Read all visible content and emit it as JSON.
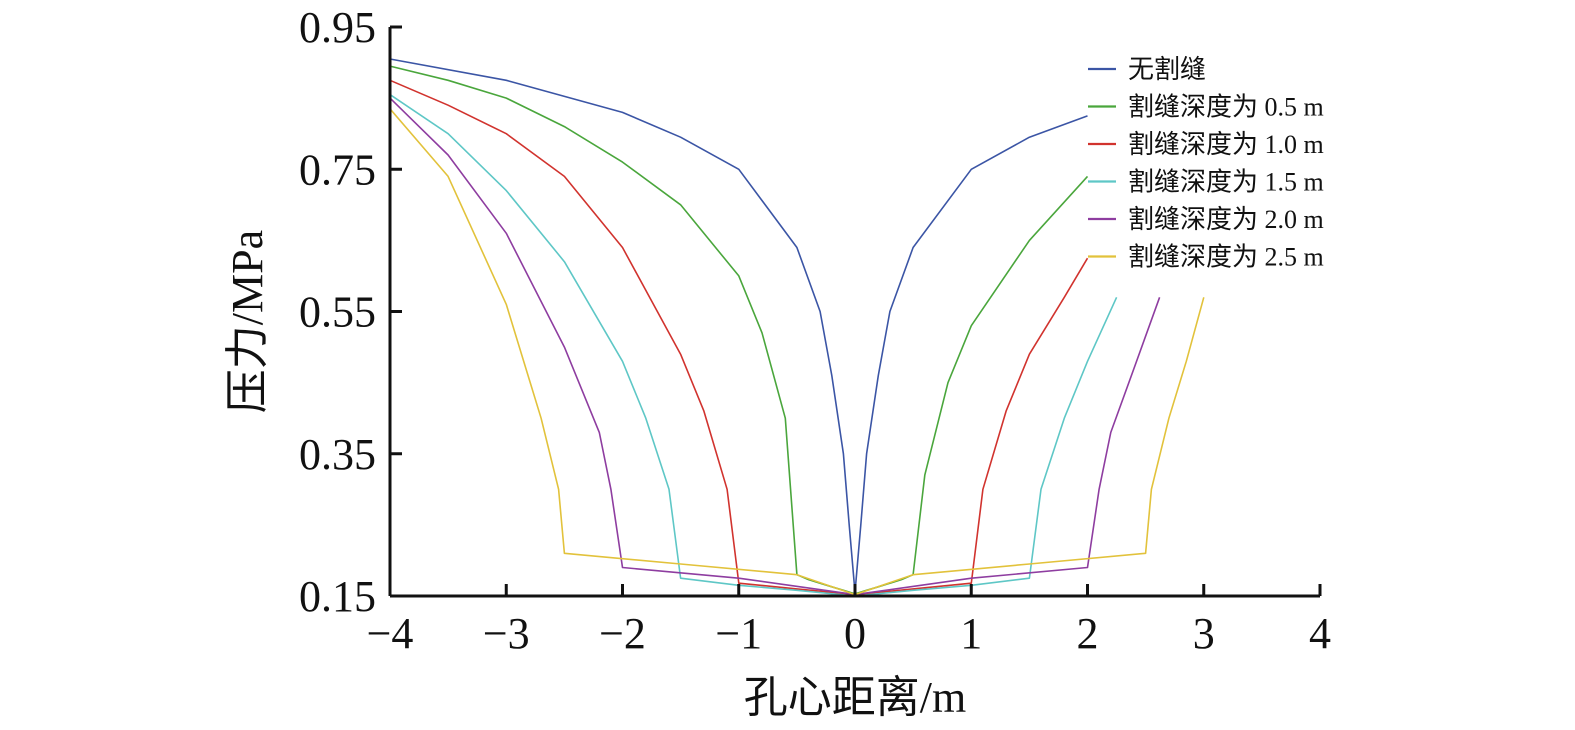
{
  "chart_data": {
    "type": "line",
    "title": "",
    "xlabel": "孔心距离/m",
    "ylabel": "压力/MPa",
    "xlim": [
      -4,
      4
    ],
    "ylim": [
      0.15,
      0.95
    ],
    "x_ticks": [
      "−4",
      "−3",
      "−2",
      "−1",
      "0",
      "1",
      "2",
      "3",
      "4"
    ],
    "y_ticks": [
      "0.15",
      "0.35",
      "0.55",
      "0.75",
      "0.95"
    ],
    "grid": false,
    "legend_position": "top-right",
    "series": [
      {
        "name": "无割缝",
        "color": "#3b55a5",
        "x": [
          -4,
          -3,
          -2,
          -1.5,
          -1,
          -0.5,
          -0.3,
          -0.2,
          -0.1,
          -0.05,
          0,
          0.05,
          0.1,
          0.2,
          0.3,
          0.5,
          1,
          1.5,
          2
        ],
        "y": [
          0.905,
          0.875,
          0.83,
          0.795,
          0.75,
          0.64,
          0.55,
          0.46,
          0.35,
          0.25,
          0.155,
          0.25,
          0.35,
          0.46,
          0.55,
          0.64,
          0.75,
          0.795,
          0.825
        ]
      },
      {
        "name": "割缝深度为 0.5 m",
        "color": "#4aa63c",
        "x": [
          -4,
          -3.5,
          -3,
          -2.5,
          -2,
          -1.5,
          -1,
          -0.8,
          -0.6,
          -0.5,
          -0.4,
          -0.3,
          -0.2,
          -0.1,
          0,
          0.1,
          0.2,
          0.3,
          0.4,
          0.5,
          0.6,
          0.8,
          1,
          1.5,
          2
        ],
        "y": [
          0.895,
          0.875,
          0.85,
          0.81,
          0.76,
          0.7,
          0.6,
          0.52,
          0.4,
          0.18,
          0.173,
          0.168,
          0.163,
          0.158,
          0.153,
          0.158,
          0.163,
          0.168,
          0.173,
          0.18,
          0.32,
          0.45,
          0.53,
          0.65,
          0.74
        ]
      },
      {
        "name": "割缝深度为 1.0 m",
        "color": "#d1332e",
        "x": [
          -4,
          -3.5,
          -3,
          -2.5,
          -2,
          -1.5,
          -1.3,
          -1.1,
          -1,
          -0.5,
          0,
          0.5,
          1,
          1.1,
          1.3,
          1.5,
          1.8,
          2
        ],
        "y": [
          0.875,
          0.84,
          0.8,
          0.74,
          0.64,
          0.49,
          0.41,
          0.3,
          0.168,
          0.16,
          0.152,
          0.16,
          0.168,
          0.3,
          0.41,
          0.49,
          0.57,
          0.625
        ]
      },
      {
        "name": "割缝深度为 1.5 m",
        "color": "#5ec7c6",
        "x": [
          -4,
          -3.5,
          -3,
          -2.5,
          -2,
          -1.8,
          -1.6,
          -1.5,
          -1,
          -0.5,
          0,
          0.5,
          1,
          1.5,
          1.6,
          1.8,
          2,
          2.25
        ],
        "y": [
          0.855,
          0.8,
          0.72,
          0.62,
          0.48,
          0.4,
          0.3,
          0.175,
          0.165,
          0.158,
          0.15,
          0.158,
          0.165,
          0.175,
          0.3,
          0.4,
          0.48,
          0.57
        ]
      },
      {
        "name": "割缝深度为 2.0 m",
        "color": "#8e3da0",
        "x": [
          -4,
          -3.5,
          -3,
          -2.5,
          -2.2,
          -2.1,
          -2,
          -1,
          0,
          1,
          2,
          2.1,
          2.2,
          2.4,
          2.62
        ],
        "y": [
          0.85,
          0.77,
          0.66,
          0.5,
          0.38,
          0.3,
          0.19,
          0.175,
          0.152,
          0.175,
          0.19,
          0.3,
          0.38,
          0.47,
          0.57
        ]
      },
      {
        "name": "割缝深度为 2.5 m",
        "color": "#e2c23b",
        "x": [
          -4,
          -3.5,
          -3,
          -2.7,
          -2.55,
          -2.5,
          -1.5,
          -0.5,
          0,
          0.5,
          1.5,
          2.5,
          2.55,
          2.7,
          2.85,
          3
        ],
        "y": [
          0.835,
          0.74,
          0.56,
          0.4,
          0.3,
          0.21,
          0.195,
          0.18,
          0.152,
          0.18,
          0.195,
          0.21,
          0.3,
          0.4,
          0.48,
          0.57
        ]
      }
    ]
  }
}
